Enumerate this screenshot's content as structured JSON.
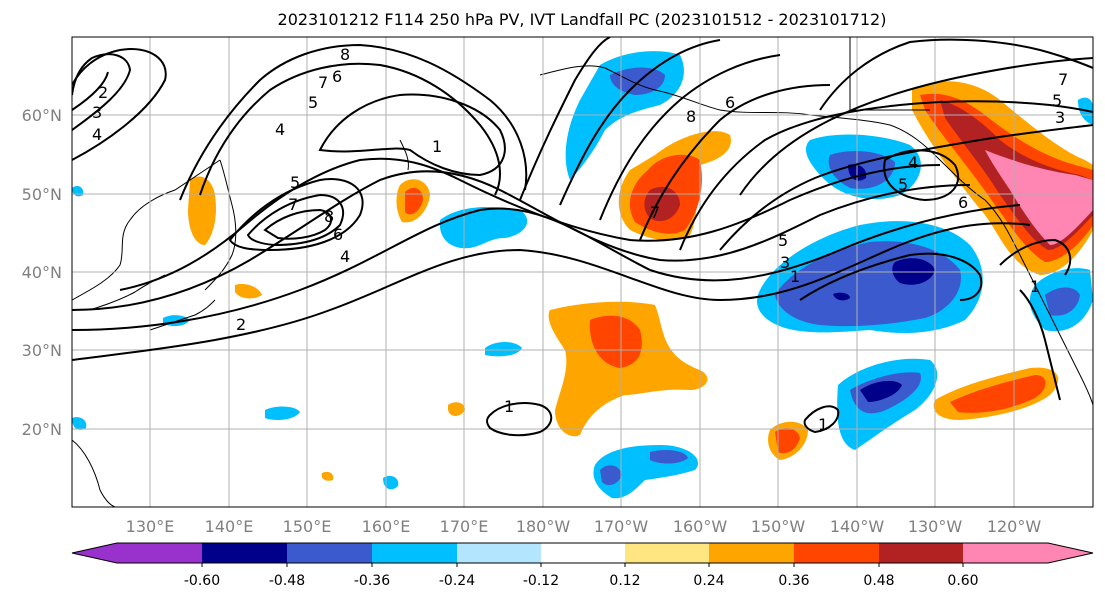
{
  "title": "2023101212 F114 250 hPa PV, IVT Landfall PC (2023101512 - 2023101712)",
  "lat_labels": [
    "60°N",
    "50°N",
    "40°N",
    "30°N",
    "20°N"
  ],
  "lon_labels": [
    "130°E",
    "140°E",
    "150°E",
    "160°E",
    "170°E",
    "180°W",
    "170°W",
    "160°W",
    "150°W",
    "140°W",
    "130°W",
    "120°W"
  ],
  "colorbar": {
    "colors": [
      "#9932cc",
      "#00008b",
      "#3a5acd",
      "#00bfff",
      "#b3e5ff",
      "#ffffff",
      "#ffffff",
      "#ffe680",
      "#ffa500",
      "#ff4500",
      "#b22222",
      "#ff85b3"
    ],
    "tick_labels": [
      "-0.60",
      "-0.48",
      "-0.36",
      "-0.24",
      "-0.12",
      "0.12",
      "0.24",
      "0.36",
      "0.48",
      "0.60"
    ]
  },
  "pv_contour_levels": [
    "1",
    "2",
    "3",
    "4",
    "5",
    "6",
    "7",
    "8"
  ],
  "contour_labels": [
    "2",
    "3",
    "4",
    "8",
    "6",
    "7",
    "5",
    "4",
    "1",
    "5",
    "7",
    "8",
    "6",
    "4",
    "2",
    "8",
    "6",
    "7",
    "5",
    "3",
    "1",
    "1",
    "4",
    "5",
    "6",
    "7",
    "3",
    "5",
    "1",
    "1"
  ]
}
